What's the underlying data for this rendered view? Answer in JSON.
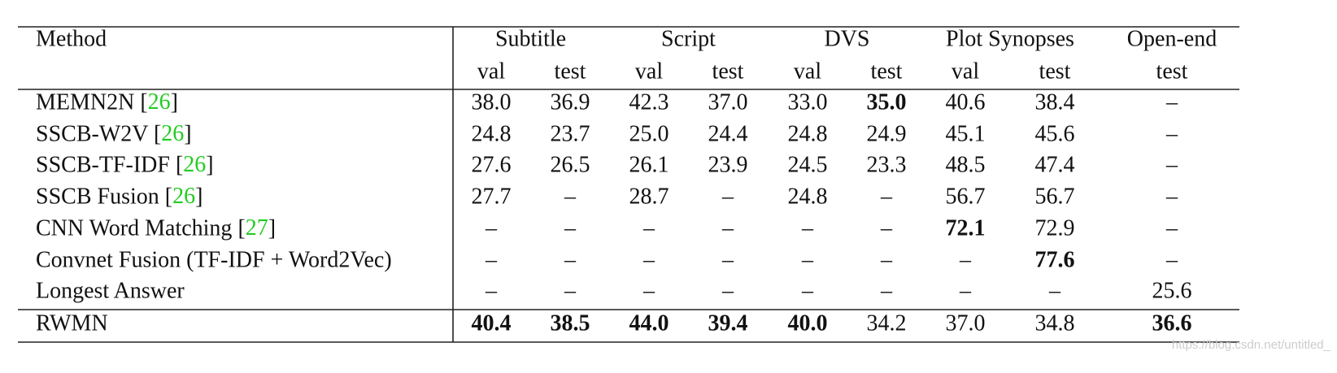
{
  "table": {
    "header": {
      "method": "Method",
      "groups": [
        {
          "name": "Subtitle",
          "columns": [
            "val",
            "test"
          ]
        },
        {
          "name": "Script",
          "columns": [
            "val",
            "test"
          ]
        },
        {
          "name": "DVS",
          "columns": [
            "val",
            "test"
          ]
        },
        {
          "name": "Plot Synopses",
          "columns": [
            "val",
            "test"
          ]
        },
        {
          "name": "Open-end",
          "columns": [
            "test"
          ]
        }
      ]
    },
    "rows": [
      {
        "method": "MEMN2N [26]",
        "cells": [
          "38.0",
          "36.9",
          "42.3",
          "37.0",
          "33.0",
          "35.0",
          "40.6",
          "38.4",
          "–"
        ],
        "bold": [
          5
        ]
      },
      {
        "method": "SSCB-W2V [26]",
        "cells": [
          "24.8",
          "23.7",
          "25.0",
          "24.4",
          "24.8",
          "24.9",
          "45.1",
          "45.6",
          "–"
        ],
        "bold": []
      },
      {
        "method": "SSCB-TF-IDF [26]",
        "cells": [
          "27.6",
          "26.5",
          "26.1",
          "23.9",
          "24.5",
          "23.3",
          "48.5",
          "47.4",
          "–"
        ],
        "bold": []
      },
      {
        "method": "SSCB Fusion [26]",
        "cells": [
          "27.7",
          "–",
          "28.7",
          "–",
          "24.8",
          "–",
          "56.7",
          "56.7",
          "–"
        ],
        "bold": []
      },
      {
        "method": "CNN Word Matching [27]",
        "cells": [
          "–",
          "–",
          "–",
          "–",
          "–",
          "–",
          "72.1",
          "72.9",
          "–"
        ],
        "bold": [
          6
        ]
      },
      {
        "method": "Convnet Fusion (TF-IDF + Word2Vec)",
        "cells": [
          "–",
          "–",
          "–",
          "–",
          "–",
          "–",
          "–",
          "77.6",
          "–"
        ],
        "bold": [
          7
        ]
      },
      {
        "method": "Longest Answer",
        "cells": [
          "–",
          "–",
          "–",
          "–",
          "–",
          "–",
          "–",
          "–",
          "25.6"
        ],
        "bold": []
      },
      {
        "method": "RWMN",
        "cells": [
          "40.4",
          "38.5",
          "44.0",
          "39.4",
          "40.0",
          "34.2",
          "37.0",
          "34.8",
          "36.6"
        ],
        "bold": [
          0,
          1,
          2,
          3,
          4,
          8
        ]
      }
    ]
  },
  "watermark": "https://blog.csdn.net/untitled_"
}
